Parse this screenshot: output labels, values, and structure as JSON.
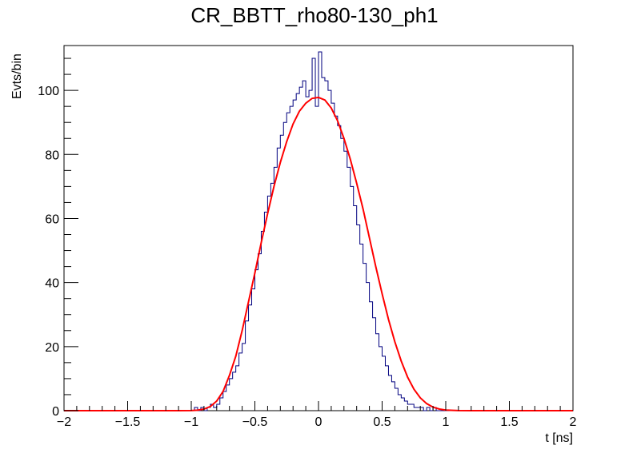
{
  "chart_data": {
    "type": "histogram",
    "title": "CR_BBTT_rho80-130_ph1",
    "xlabel": "t [ns]",
    "ylabel": "Evts/bin",
    "xlim": [
      -2,
      2
    ],
    "ylim": [
      0,
      114
    ],
    "x_ticks": [
      "−2",
      "−1.5",
      "−1",
      "−0.5",
      "0",
      "0.5",
      "1",
      "1.5",
      "2"
    ],
    "y_ticks": [
      "0",
      "20",
      "40",
      "60",
      "80",
      "100"
    ],
    "histogram_color": "#00007f",
    "fit_color": "#ff0000",
    "histogram": {
      "name": "histogram",
      "x": [
        -1.0,
        -0.975,
        -0.95,
        -0.925,
        -0.9,
        -0.875,
        -0.85,
        -0.825,
        -0.8,
        -0.775,
        -0.75,
        -0.725,
        -0.7,
        -0.675,
        -0.65,
        -0.625,
        -0.6,
        -0.575,
        -0.55,
        -0.525,
        -0.5,
        -0.475,
        -0.45,
        -0.425,
        -0.4,
        -0.375,
        -0.35,
        -0.325,
        -0.3,
        -0.275,
        -0.25,
        -0.225,
        -0.2,
        -0.175,
        -0.15,
        -0.125,
        -0.1,
        -0.075,
        -0.05,
        -0.025,
        0.0,
        0.025,
        0.05,
        0.075,
        0.1,
        0.125,
        0.15,
        0.175,
        0.2,
        0.225,
        0.25,
        0.275,
        0.3,
        0.325,
        0.35,
        0.375,
        0.4,
        0.425,
        0.45,
        0.475,
        0.5,
        0.525,
        0.55,
        0.575,
        0.6,
        0.625,
        0.65,
        0.675,
        0.7,
        0.725,
        0.75,
        0.775,
        0.8,
        0.825,
        0.85,
        0.875,
        0.9,
        0.925,
        0.95,
        0.975,
        1.0
      ],
      "values": [
        0,
        1,
        0,
        1,
        0,
        1,
        2,
        1,
        2,
        4,
        6,
        8,
        10,
        12,
        14,
        18,
        21,
        28,
        33,
        38,
        44,
        49,
        56,
        62,
        67,
        71,
        76,
        82,
        86,
        90,
        93,
        95,
        97,
        99,
        101,
        103,
        98,
        100,
        110,
        95,
        112,
        104,
        103,
        100,
        96,
        92,
        89,
        85,
        81,
        76,
        70,
        64,
        58,
        52,
        46,
        40,
        34,
        29,
        24,
        20,
        17,
        14,
        11,
        9,
        7,
        5,
        4,
        3,
        2,
        2,
        1,
        1,
        1,
        0,
        1,
        0,
        1,
        0,
        0,
        0,
        0
      ]
    },
    "fit": {
      "name": "fit",
      "x": [
        -2.0,
        -1.9,
        -1.8,
        -1.7,
        -1.6,
        -1.5,
        -1.4,
        -1.3,
        -1.2,
        -1.1,
        -1.0,
        -0.95,
        -0.9,
        -0.85,
        -0.8,
        -0.75,
        -0.7,
        -0.65,
        -0.6,
        -0.55,
        -0.5,
        -0.45,
        -0.4,
        -0.35,
        -0.3,
        -0.25,
        -0.2,
        -0.15,
        -0.1,
        -0.05,
        0.0,
        0.05,
        0.1,
        0.15,
        0.2,
        0.25,
        0.3,
        0.35,
        0.4,
        0.45,
        0.5,
        0.55,
        0.6,
        0.65,
        0.7,
        0.75,
        0.8,
        0.85,
        0.9,
        0.95,
        1.0,
        1.1,
        1.2,
        1.3,
        1.4,
        1.5,
        1.6,
        1.7,
        1.8,
        1.9,
        2.0
      ],
      "values": [
        0,
        0,
        0,
        0,
        0,
        0,
        0,
        0,
        0,
        0.01,
        0.04,
        0.15,
        0.5,
        1.3,
        3.0,
        6.0,
        11.0,
        17.0,
        25.0,
        34.0,
        43.0,
        52.5,
        61.5,
        70.0,
        77.5,
        84.0,
        89.5,
        93.5,
        96.0,
        97.5,
        97.8,
        97.0,
        94.5,
        90.5,
        85.0,
        78.5,
        71.0,
        63.0,
        54.0,
        45.0,
        36.5,
        28.5,
        21.5,
        15.5,
        10.5,
        6.7,
        4.0,
        2.2,
        1.1,
        0.5,
        0.2,
        0.02,
        0,
        0,
        0,
        0,
        0,
        0,
        0,
        0,
        0
      ]
    }
  }
}
